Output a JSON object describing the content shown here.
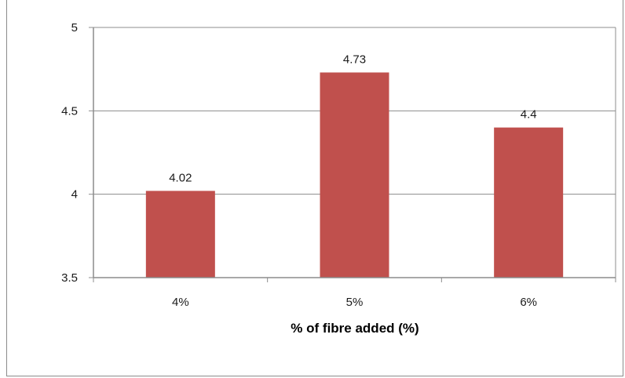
{
  "chart_data": {
    "type": "bar",
    "title": "",
    "xlabel": "% of fibre added (%)",
    "ylabel": "",
    "categories": [
      "4%",
      "5%",
      "6%"
    ],
    "values": [
      4.02,
      4.73,
      4.4
    ],
    "data_labels": [
      "4.02",
      "4.73",
      "4.4"
    ],
    "ylim": [
      3.5,
      5
    ],
    "yticks": [
      3.5,
      4,
      4.5,
      5
    ],
    "ytick_labels": [
      "3.5",
      "4",
      "4.5",
      "5"
    ],
    "grid": true,
    "legend": "none",
    "bar_color": "#c0504d"
  }
}
